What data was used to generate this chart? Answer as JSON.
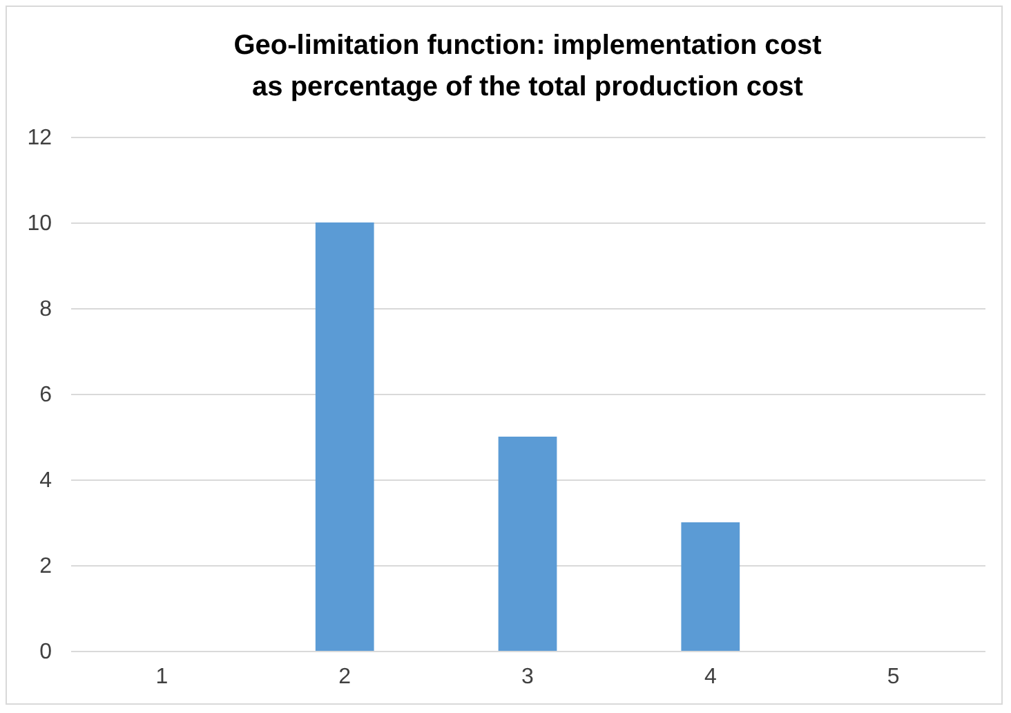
{
  "chart_data": {
    "type": "bar",
    "title": "Geo-limitation function: implementation cost\nas percentage of the total production cost",
    "categories": [
      "1",
      "2",
      "3",
      "4",
      "5"
    ],
    "values": [
      0,
      10,
      5,
      3,
      0
    ],
    "color": "#5b9bd5",
    "ylim": [
      0,
      12
    ],
    "yticks": [
      0,
      2,
      4,
      6,
      8,
      10,
      12
    ],
    "grid": "y"
  }
}
